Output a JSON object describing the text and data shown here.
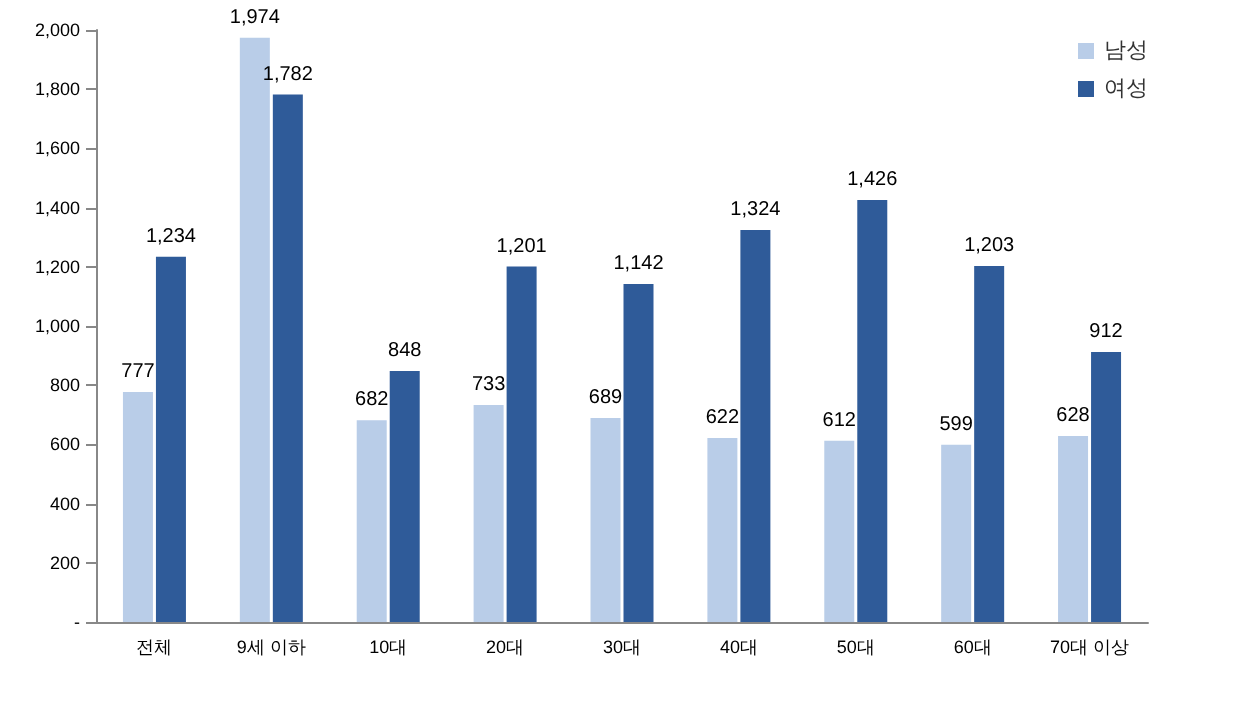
{
  "chart_data": {
    "type": "bar",
    "categories": [
      "전체",
      "9세 이하",
      "10대",
      "20대",
      "30대",
      "40대",
      "50대",
      "60대",
      "70대 이상"
    ],
    "series": [
      {
        "name": "남성",
        "color": "#b9cde8",
        "values": [
          777,
          1974,
          682,
          733,
          689,
          622,
          612,
          599,
          628
        ],
        "value_labels": [
          "777",
          "1,974",
          "682",
          "733",
          "689",
          "622",
          "612",
          "599",
          "628"
        ]
      },
      {
        "name": "여성",
        "color": "#2f5b99",
        "values": [
          1234,
          1782,
          848,
          1201,
          1142,
          1324,
          1426,
          1203,
          912
        ],
        "value_labels": [
          "1,234",
          "1,782",
          "848",
          "1,201",
          "1,142",
          "1,324",
          "1,426",
          "1,203",
          "912"
        ]
      }
    ],
    "ylim": [
      0,
      2000
    ],
    "yticks": [
      {
        "value": 0,
        "label": "-"
      },
      {
        "value": 200,
        "label": "200"
      },
      {
        "value": 400,
        "label": "400"
      },
      {
        "value": 600,
        "label": "600"
      },
      {
        "value": 800,
        "label": "800"
      },
      {
        "value": 1000,
        "label": "1,000"
      },
      {
        "value": 1200,
        "label": "1,200"
      },
      {
        "value": 1400,
        "label": "1,400"
      },
      {
        "value": 1600,
        "label": "1,600"
      },
      {
        "value": 1800,
        "label": "1,800"
      },
      {
        "value": 2000,
        "label": "2,000"
      }
    ],
    "grid": false,
    "legend": "top right"
  }
}
